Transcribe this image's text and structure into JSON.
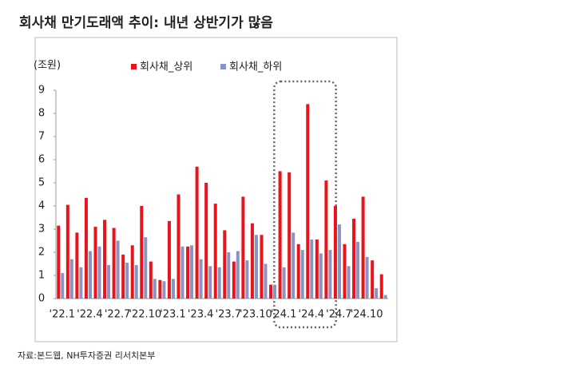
{
  "chart_data": {
    "type": "bar",
    "title": "회사채 만기도래액 추이: 내년 상반기가 많음",
    "y_unit": "(조원)",
    "source": "자료:본드웹, NH투자증권 리서치본부",
    "categories": [
      "'22.1",
      null,
      null,
      "'22.4",
      null,
      null,
      "'22.7",
      null,
      null,
      "'22.10",
      null,
      null,
      "'23.1",
      null,
      null,
      "'23.4",
      null,
      null,
      "'23.7",
      null,
      null,
      "'23.10",
      null,
      null,
      "'24.1",
      null,
      null,
      "'24.4",
      null,
      null,
      "'24.7",
      null,
      null,
      "'24.10",
      null,
      null
    ],
    "series": [
      {
        "name": "회사채_상위",
        "color": "#e8141c",
        "values": [
          3.15,
          4.05,
          2.85,
          4.35,
          3.1,
          3.4,
          3.05,
          1.9,
          2.3,
          4.0,
          1.6,
          0.8,
          3.35,
          4.5,
          2.25,
          5.7,
          5.0,
          4.1,
          2.95,
          1.6,
          4.4,
          3.25,
          2.75,
          0.6,
          5.5,
          5.45,
          2.35,
          8.4,
          2.55,
          5.1,
          4.0,
          2.35,
          3.45,
          4.4,
          1.65,
          1.05
        ]
      },
      {
        "name": "회사채_하위",
        "color": "#8b93c4",
        "values": [
          1.1,
          1.7,
          1.35,
          2.05,
          2.25,
          1.45,
          2.5,
          1.55,
          1.45,
          2.65,
          0.85,
          0.75,
          0.85,
          2.25,
          2.3,
          1.7,
          1.4,
          1.35,
          2.0,
          2.05,
          1.65,
          2.75,
          1.5,
          0.6,
          1.35,
          2.85,
          2.1,
          2.55,
          1.95,
          2.1,
          3.2,
          1.4,
          2.45,
          1.8,
          0.45,
          0.15
        ]
      }
    ],
    "ylim": [
      0,
      9
    ],
    "yticks": [
      0,
      1,
      2,
      3,
      4,
      5,
      6,
      7,
      8,
      9
    ],
    "grid": false
  }
}
